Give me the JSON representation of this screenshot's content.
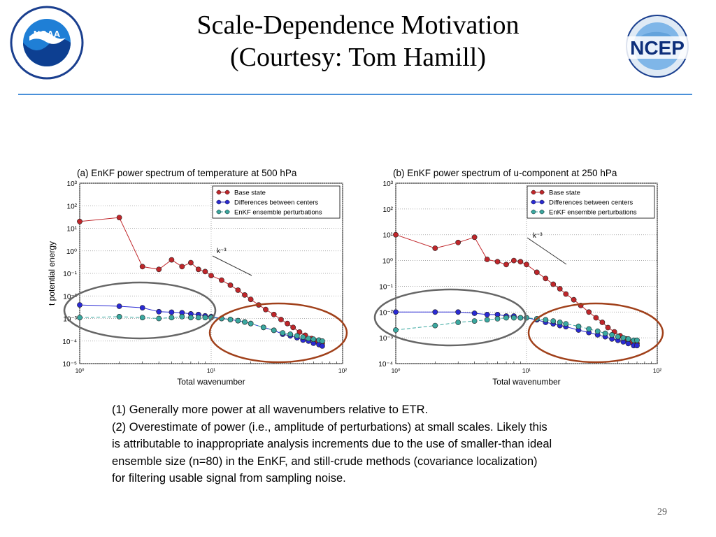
{
  "slide": {
    "title_line1": "Scale-Dependence Motivation",
    "title_line2": "(Courtesy: Tom Hamill)",
    "page_number": "29"
  },
  "logos": {
    "left": {
      "name": "noaa-logo",
      "text": "NOAA",
      "ring": "NATIONAL OCEANIC AND ATMOSPHERIC ADMINISTRATION · U.S. DEPARTMENT OF COMMERCE"
    },
    "right": {
      "name": "ncep-logo",
      "text": "NCEP",
      "ring": "NATIONAL CENTERS FOR ENVIRONMENTAL PREDICTION"
    }
  },
  "notes": [
    "(1)  Generally more power at all wavenumbers relative to ETR.",
    "(2)  Overestimate of power (i.e., amplitude of perturbations) at small scales.  Likely this",
    "is attributable to inappropriate analysis increments due to the use of smaller-than ideal",
    "ensemble size (n=80) in the EnKF, and still-crude methods (covariance localization)",
    "for filtering usable signal from sampling noise."
  ],
  "colors": {
    "base_state": "#c0262a",
    "differences": "#2a2ad4",
    "perturbations": "#3aa8a0",
    "ellipse_gray": "#666666",
    "ellipse_brown": "#a0401a",
    "rule": "#4a90d9"
  },
  "chart_data": [
    {
      "type": "line",
      "title": "(a) EnKF power spectrum of temperature at 500 hPa",
      "xlabel": "Total wavenumber",
      "ylabel": "t potential energy",
      "xscale": "log",
      "yscale": "log",
      "xlim": [
        1,
        100
      ],
      "ylim": [
        1e-05,
        1000
      ],
      "x_ticks": [
        "10⁰",
        "10¹",
        "10²"
      ],
      "y_ticks": [
        "10⁻⁵",
        "10⁻⁴",
        "10⁻³",
        "10⁻²",
        "10⁻¹",
        "10⁰",
        "10¹",
        "10²",
        "10³"
      ],
      "legend": "top-right",
      "grid": true,
      "annotation": "k⁻³",
      "series": [
        {
          "name": "Base state",
          "color_key": "base_state",
          "style": "solid",
          "points": [
            [
              1,
              20
            ],
            [
              2,
              30
            ],
            [
              3,
              0.2
            ],
            [
              4,
              0.15
            ],
            [
              5,
              0.4
            ],
            [
              6,
              0.2
            ],
            [
              7,
              0.3
            ],
            [
              8,
              0.15
            ],
            [
              9,
              0.12
            ],
            [
              10,
              0.08
            ],
            [
              12,
              0.05
            ],
            [
              14,
              0.03
            ],
            [
              16,
              0.018
            ],
            [
              18,
              0.011
            ],
            [
              20,
              0.007
            ],
            [
              23,
              0.004
            ],
            [
              26,
              0.0025
            ],
            [
              30,
              0.0015
            ],
            [
              34,
              0.0009
            ],
            [
              38,
              0.0006
            ],
            [
              42,
              0.0004
            ],
            [
              47,
              0.00025
            ],
            [
              52,
              0.00018
            ],
            [
              58,
              0.00013
            ],
            [
              64,
              0.0001
            ],
            [
              70,
              8e-05
            ]
          ]
        },
        {
          "name": "Differences between centers",
          "color_key": "differences",
          "style": "solid",
          "points": [
            [
              1,
              0.004
            ],
            [
              2,
              0.0035
            ],
            [
              3,
              0.003
            ],
            [
              4,
              0.002
            ],
            [
              5,
              0.0019
            ],
            [
              6,
              0.0018
            ],
            [
              7,
              0.0016
            ],
            [
              8,
              0.0015
            ],
            [
              9,
              0.0013
            ],
            [
              10,
              0.0012
            ],
            [
              12,
              0.001
            ],
            [
              14,
              0.0009
            ],
            [
              16,
              0.0008
            ],
            [
              18,
              0.0007
            ],
            [
              20,
              0.0006
            ],
            [
              25,
              0.0004
            ],
            [
              30,
              0.0003
            ],
            [
              35,
              0.0002
            ],
            [
              40,
              0.00017
            ],
            [
              45,
              0.00014
            ],
            [
              50,
              0.00011
            ],
            [
              55,
              0.0001
            ],
            [
              60,
              8e-05
            ],
            [
              66,
              7e-05
            ],
            [
              70,
              6e-05
            ]
          ]
        },
        {
          "name": "EnKF ensemble perturbations",
          "color_key": "perturbations",
          "style": "dashed",
          "points": [
            [
              1,
              0.0011
            ],
            [
              2,
              0.0012
            ],
            [
              3,
              0.0011
            ],
            [
              4,
              0.001
            ],
            [
              5,
              0.0011
            ],
            [
              6,
              0.0012
            ],
            [
              7,
              0.0011
            ],
            [
              8,
              0.0011
            ],
            [
              9,
              0.0011
            ],
            [
              10,
              0.0011
            ],
            [
              12,
              0.001
            ],
            [
              14,
              0.0009
            ],
            [
              16,
              0.0008
            ],
            [
              18,
              0.0007
            ],
            [
              20,
              0.0006
            ],
            [
              25,
              0.0004
            ],
            [
              30,
              0.0003
            ],
            [
              35,
              0.00023
            ],
            [
              40,
              0.0002
            ],
            [
              45,
              0.00017
            ],
            [
              50,
              0.00015
            ],
            [
              55,
              0.00013
            ],
            [
              60,
              0.00012
            ],
            [
              66,
              0.00011
            ],
            [
              70,
              0.0001
            ]
          ]
        }
      ]
    },
    {
      "type": "line",
      "title": "(b) EnKF power spectrum of u-component at 250 hPa",
      "xlabel": "Total wavenumber",
      "ylabel": "",
      "xscale": "log",
      "yscale": "log",
      "xlim": [
        1,
        100
      ],
      "ylim": [
        0.0001,
        1000
      ],
      "x_ticks": [
        "10⁰",
        "10¹",
        "10²"
      ],
      "y_ticks": [
        "10⁻⁴",
        "10⁻³",
        "10⁻²",
        "10⁻¹",
        "10⁰",
        "10¹",
        "10²",
        "10³"
      ],
      "legend": "top-right",
      "grid": true,
      "annotation": "k⁻³",
      "series": [
        {
          "name": "Base state",
          "color_key": "base_state",
          "style": "solid",
          "points": [
            [
              1,
              10
            ],
            [
              2,
              3
            ],
            [
              3,
              5
            ],
            [
              4,
              8
            ],
            [
              5,
              1.1
            ],
            [
              6,
              0.9
            ],
            [
              7,
              0.7
            ],
            [
              8,
              1.0
            ],
            [
              9,
              0.9
            ],
            [
              10,
              0.7
            ],
            [
              12,
              0.35
            ],
            [
              14,
              0.2
            ],
            [
              16,
              0.12
            ],
            [
              18,
              0.08
            ],
            [
              20,
              0.05
            ],
            [
              23,
              0.03
            ],
            [
              26,
              0.018
            ],
            [
              30,
              0.01
            ],
            [
              34,
              0.006
            ],
            [
              38,
              0.004
            ],
            [
              42,
              0.0025
            ],
            [
              47,
              0.0017
            ],
            [
              52,
              0.0012
            ],
            [
              58,
              0.0009
            ],
            [
              64,
              0.0007
            ],
            [
              70,
              0.0006
            ]
          ]
        },
        {
          "name": "Differences between centers",
          "color_key": "differences",
          "style": "solid",
          "points": [
            [
              1,
              0.01
            ],
            [
              2,
              0.01
            ],
            [
              3,
              0.01
            ],
            [
              4,
              0.009
            ],
            [
              5,
              0.008
            ],
            [
              6,
              0.008
            ],
            [
              7,
              0.007
            ],
            [
              8,
              0.007
            ],
            [
              9,
              0.006
            ],
            [
              10,
              0.006
            ],
            [
              12,
              0.005
            ],
            [
              14,
              0.004
            ],
            [
              16,
              0.0035
            ],
            [
              18,
              0.003
            ],
            [
              20,
              0.0027
            ],
            [
              25,
              0.002
            ],
            [
              30,
              0.0016
            ],
            [
              35,
              0.0013
            ],
            [
              40,
              0.0011
            ],
            [
              45,
              0.0009
            ],
            [
              50,
              0.0008
            ],
            [
              55,
              0.0007
            ],
            [
              60,
              0.0006
            ],
            [
              66,
              0.0005
            ],
            [
              70,
              0.0005
            ]
          ]
        },
        {
          "name": "EnKF ensemble perturbations",
          "color_key": "perturbations",
          "style": "dashed",
          "points": [
            [
              1,
              0.002
            ],
            [
              2,
              0.003
            ],
            [
              3,
              0.004
            ],
            [
              4,
              0.0045
            ],
            [
              5,
              0.005
            ],
            [
              6,
              0.0055
            ],
            [
              7,
              0.006
            ],
            [
              8,
              0.006
            ],
            [
              9,
              0.006
            ],
            [
              10,
              0.006
            ],
            [
              12,
              0.0055
            ],
            [
              14,
              0.005
            ],
            [
              16,
              0.0045
            ],
            [
              18,
              0.004
            ],
            [
              20,
              0.0035
            ],
            [
              25,
              0.0028
            ],
            [
              30,
              0.0022
            ],
            [
              35,
              0.0018
            ],
            [
              40,
              0.0015
            ],
            [
              45,
              0.0013
            ],
            [
              50,
              0.0011
            ],
            [
              55,
              0.001
            ],
            [
              60,
              0.0009
            ],
            [
              66,
              0.0008
            ],
            [
              70,
              0.0008
            ]
          ]
        }
      ]
    }
  ]
}
